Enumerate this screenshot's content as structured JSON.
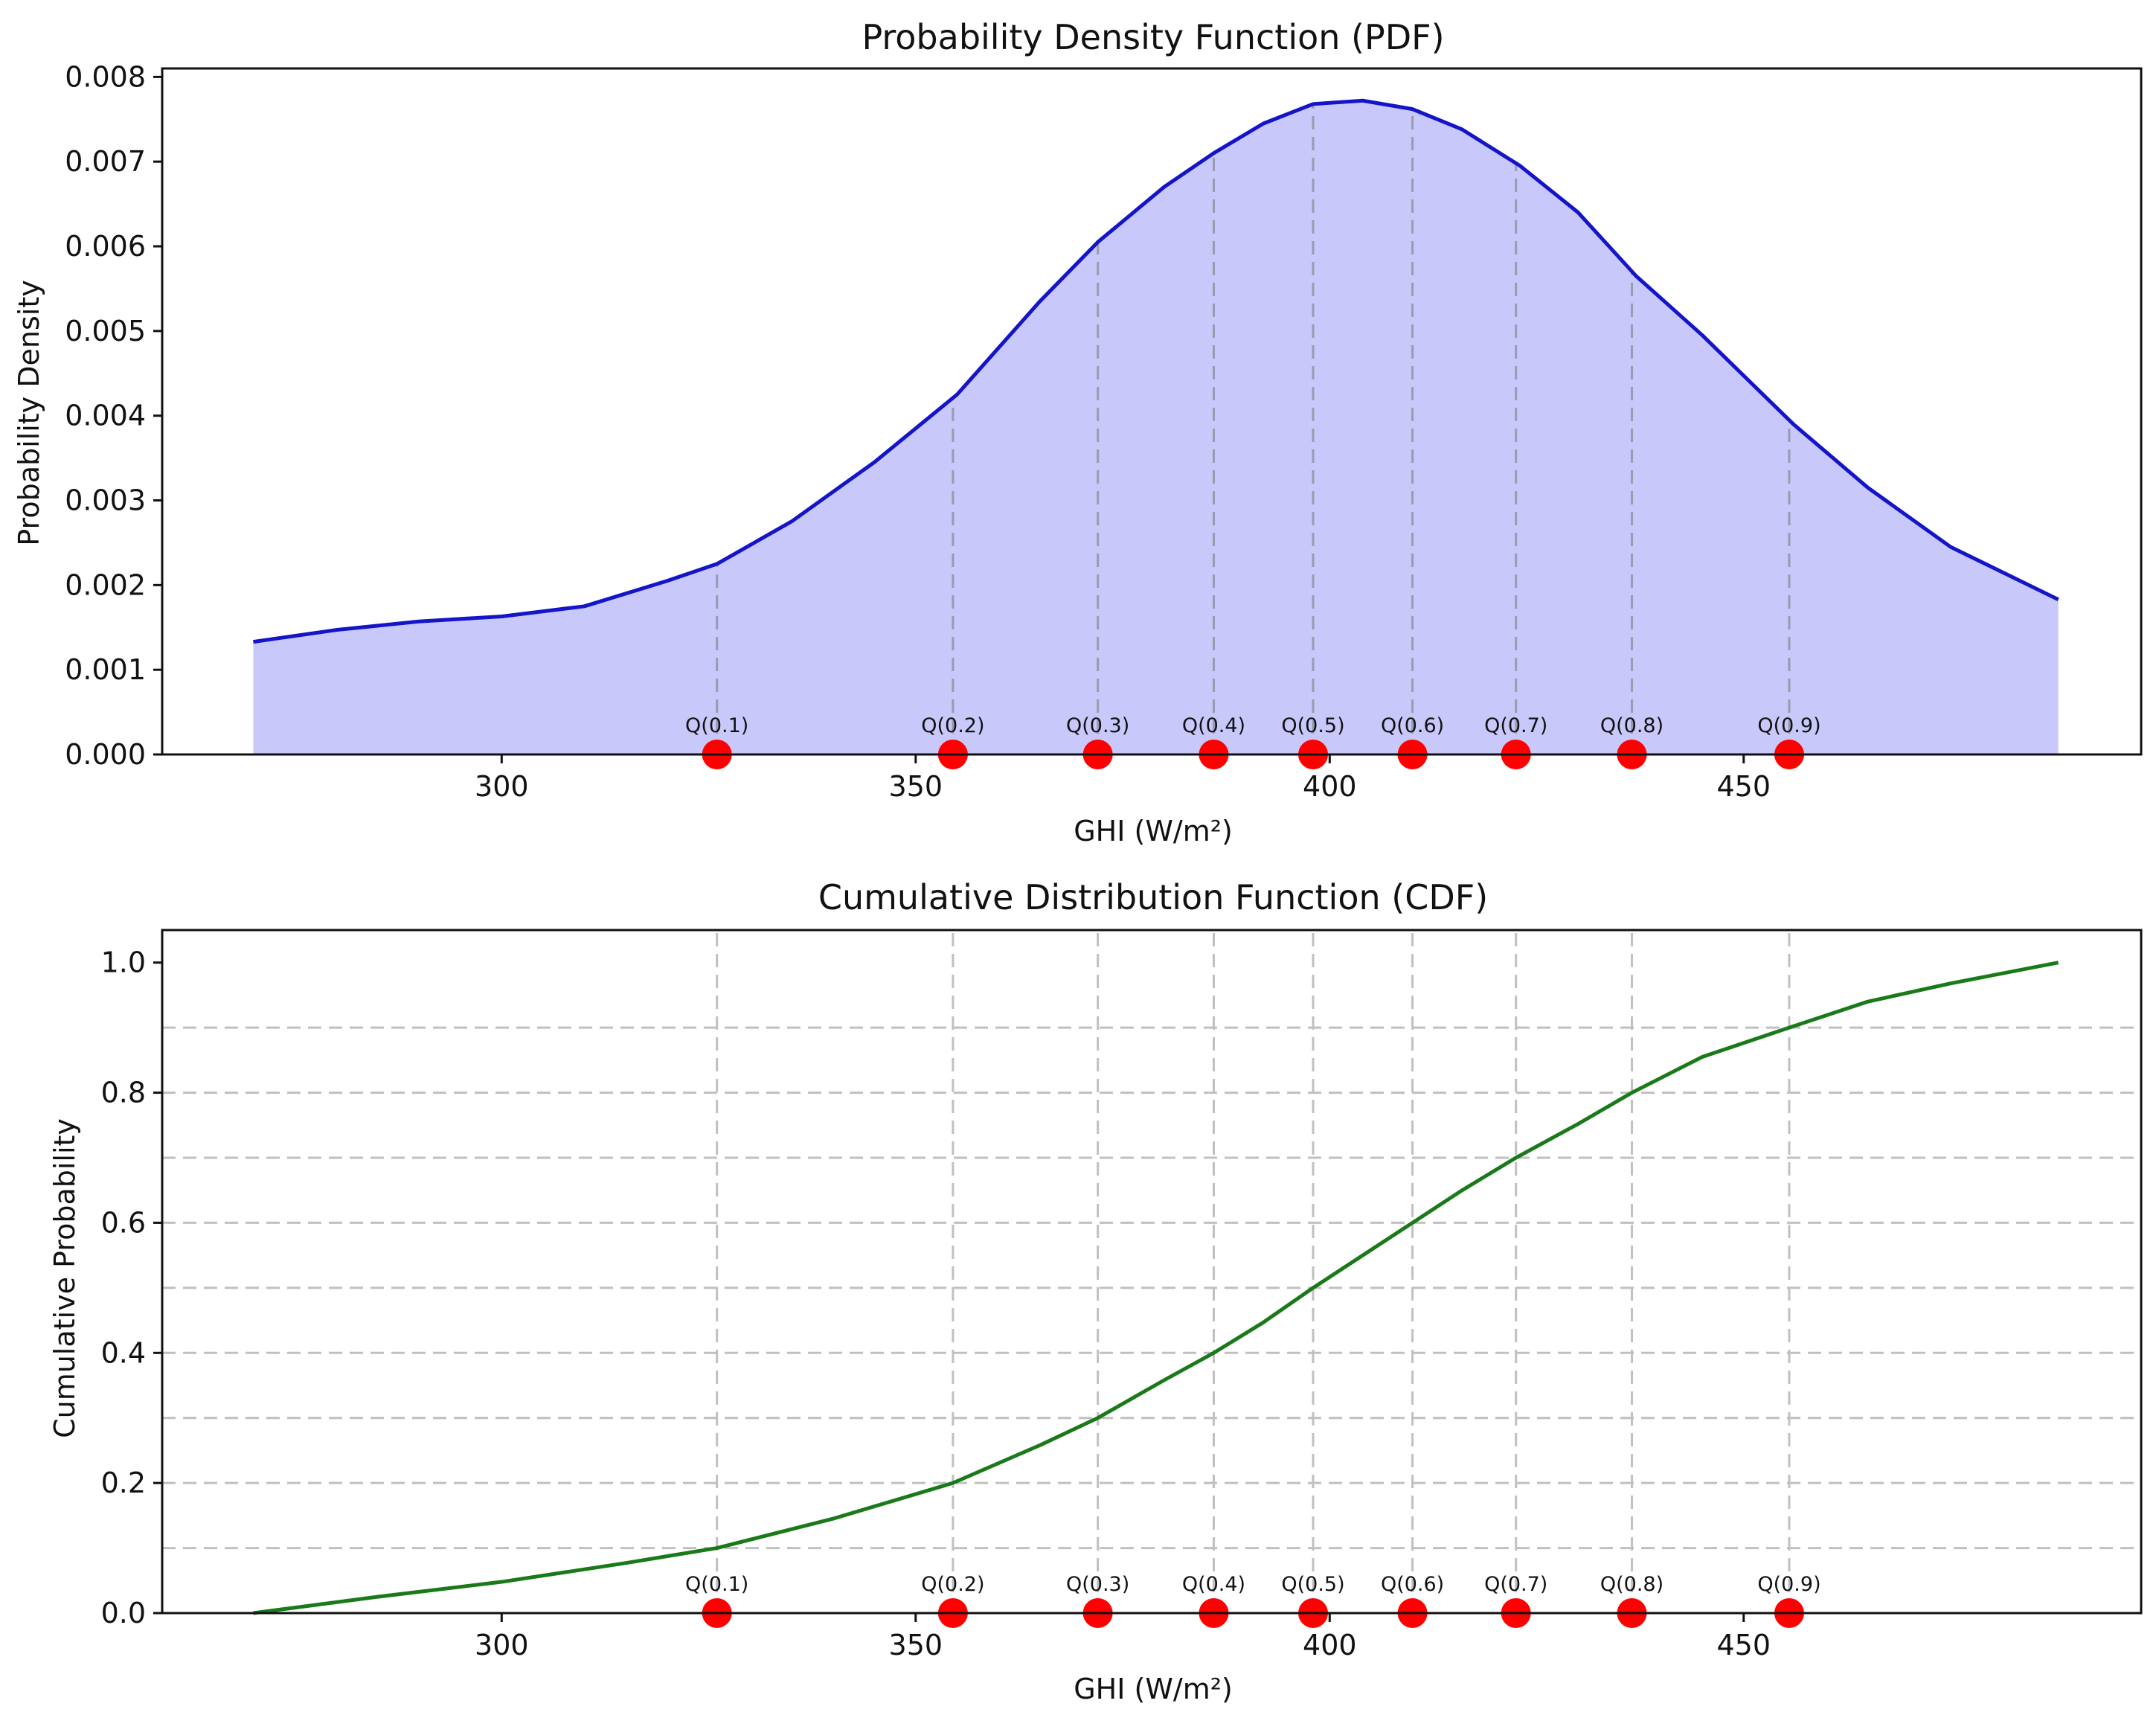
{
  "colors": {
    "pdf_line": "#1414c8",
    "pdf_fill": "#c8c8fa",
    "cdf_line": "#1a7a1a",
    "marker": "#ff0000",
    "grid": "#c0c0c0",
    "axis": "#111111"
  },
  "chart_data": [
    {
      "type": "area",
      "title": "Probability Density Function (PDF)",
      "xlabel": "GHI (W/m²)",
      "ylabel": "Probability Density",
      "xlim": [
        259,
        498
      ],
      "ylim": [
        0,
        0.0081
      ],
      "xticks": [
        300,
        350,
        400,
        450
      ],
      "xtick_labels": [
        "300",
        "350",
        "400",
        "450"
      ],
      "yticks": [
        0,
        0.001,
        0.002,
        0.003,
        0.004,
        0.005,
        0.006,
        0.007,
        0.008
      ],
      "ytick_labels": [
        "0.000",
        "0.001",
        "0.002",
        "0.003",
        "0.004",
        "0.005",
        "0.006",
        "0.007",
        "0.008"
      ],
      "grid": "vertical dashed at quantiles",
      "series": [
        {
          "x": [
            270,
            280,
            290,
            300,
            310,
            320,
            326,
            335,
            345,
            355,
            365,
            372,
            380,
            386,
            392,
            398,
            404,
            410,
            416,
            423,
            430,
            437,
            445,
            456,
            465,
            475,
            488
          ],
          "y": [
            0.00133,
            0.00147,
            0.00157,
            0.00163,
            0.00175,
            0.00205,
            0.00225,
            0.00275,
            0.00345,
            0.00425,
            0.00535,
            0.00605,
            0.0067,
            0.0071,
            0.00745,
            0.00768,
            0.00772,
            0.00762,
            0.00738,
            0.00695,
            0.0064,
            0.00565,
            0.00495,
            0.0039,
            0.00315,
            0.00245,
            0.00183
          ]
        }
      ],
      "quantiles": {
        "labels": [
          "Q(0.1)",
          "Q(0.2)",
          "Q(0.3)",
          "Q(0.4)",
          "Q(0.5)",
          "Q(0.6)",
          "Q(0.7)",
          "Q(0.8)",
          "Q(0.9)"
        ],
        "x": [
          326,
          354.5,
          372,
          386,
          398,
          410,
          422.5,
          436.5,
          455.5
        ]
      }
    },
    {
      "type": "line",
      "title": "Cumulative Distribution Function (CDF)",
      "xlabel": "GHI (W/m²)",
      "ylabel": "Cumulative Probability",
      "xlim": [
        259,
        498
      ],
      "ylim": [
        0,
        1.05
      ],
      "xticks": [
        300,
        350,
        400,
        450
      ],
      "xtick_labels": [
        "300",
        "350",
        "400",
        "450"
      ],
      "yticks": [
        0,
        0.2,
        0.4,
        0.6,
        0.8,
        1.0
      ],
      "ytick_labels": [
        "0.0",
        "0.2",
        "0.4",
        "0.6",
        "0.8",
        "1.0"
      ],
      "grid": "dashed at quantiles and every 0.1",
      "grid_y": [
        0.1,
        0.2,
        0.3,
        0.4,
        0.5,
        0.6,
        0.7,
        0.8,
        0.9
      ],
      "series": [
        {
          "x": [
            270,
            285,
            300,
            315,
            326,
            340,
            354.5,
            365,
            372,
            380,
            386,
            392,
            398,
            404,
            410,
            416,
            422.5,
            430,
            436.5,
            445,
            455.5,
            465,
            475,
            488
          ],
          "y": [
            0.0,
            0.025,
            0.048,
            0.077,
            0.1,
            0.145,
            0.2,
            0.258,
            0.3,
            0.358,
            0.4,
            0.447,
            0.5,
            0.55,
            0.6,
            0.65,
            0.7,
            0.752,
            0.8,
            0.855,
            0.9,
            0.94,
            0.968,
            1.0
          ]
        }
      ],
      "quantiles": {
        "labels": [
          "Q(0.1)",
          "Q(0.2)",
          "Q(0.3)",
          "Q(0.4)",
          "Q(0.5)",
          "Q(0.6)",
          "Q(0.7)",
          "Q(0.8)",
          "Q(0.9)"
        ],
        "x": [
          326,
          354.5,
          372,
          386,
          398,
          410,
          422.5,
          436.5,
          455.5
        ]
      }
    }
  ]
}
